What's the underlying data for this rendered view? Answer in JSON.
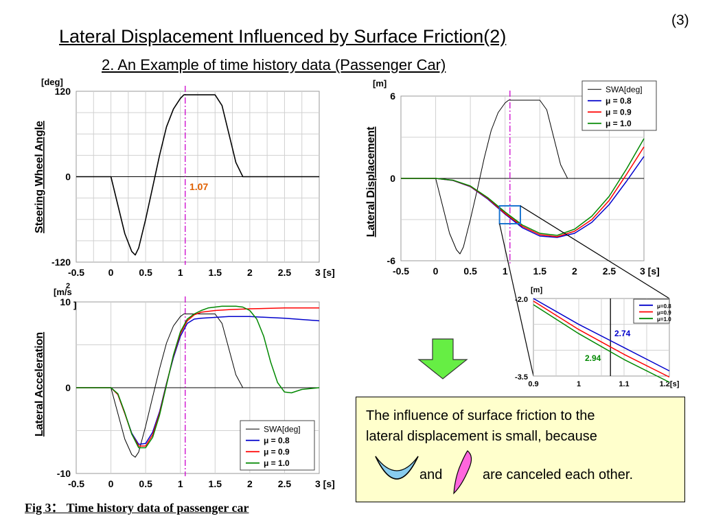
{
  "page_number": "(3)",
  "title": "Lateral Displacement Influenced by Surface Friction(2) ",
  "subtitle": "2. An Example of time history data (Passenger Car)",
  "caption": "Fig 3： Time history data of passenger car ",
  "note": {
    "line1": "The influence of surface friction to the",
    "line2": "lateral displacement is small, because",
    "and_label": "and",
    "tail": "are canceled each other."
  },
  "colors": {
    "swa": "#000000",
    "mu08": "#0000cc",
    "mu09": "#ff0000",
    "mu10": "#008800",
    "marker": "#cc00cc",
    "annotation_orange": "#e06000",
    "arrow": "#66ee44",
    "note_bg": "#ffffcc",
    "zoom_box": "#1a75d1"
  },
  "chart_data": [
    {
      "id": "steering",
      "type": "line",
      "unit_label": "[deg]",
      "ylabel": "Steering Wheel Angle",
      "xlim": [
        -0.5,
        3
      ],
      "ylim": [
        -120,
        120
      ],
      "yticks": [
        "120",
        "0",
        "-120"
      ],
      "xticks": [
        "-0.5",
        "0",
        "0.5",
        "1",
        "1.5",
        "2",
        "2.5",
        "3 [s]"
      ],
      "annotation": "1.07",
      "marker_x": 1.07,
      "series": [
        {
          "x": [
            -0.5,
            0,
            0.1,
            0.2,
            0.3,
            0.35,
            0.4,
            0.5,
            0.6,
            0.7,
            0.8,
            0.9,
            1.0,
            1.05,
            1.1,
            1.5,
            1.6,
            1.7,
            1.8,
            1.9,
            3.0
          ],
          "y": [
            0,
            0,
            -40,
            -80,
            -105,
            -110,
            -100,
            -60,
            -15,
            30,
            70,
            95,
            110,
            115,
            115,
            115,
            100,
            60,
            20,
            0,
            0
          ]
        }
      ]
    },
    {
      "id": "lateral_displacement",
      "type": "line",
      "unit_label": "[m]",
      "ylabel": "Lateral  Displacement",
      "xlim": [
        -0.5,
        3
      ],
      "ylim": [
        -6,
        6
      ],
      "yticks": [
        "6",
        "0",
        "-6"
      ],
      "xticks": [
        "-0.5",
        "0",
        "0.5",
        "1",
        "1.5",
        "2",
        "2.5",
        "3 [s]"
      ],
      "marker_x": 1.07,
      "legend": [
        "SWA[deg]",
        "μ  =  0.8",
        "μ  =  0.9",
        "μ  =  1.0"
      ],
      "swa": {
        "x": [
          -0.5,
          0,
          0.1,
          0.2,
          0.3,
          0.35,
          0.4,
          0.5,
          0.6,
          0.7,
          0.8,
          0.9,
          1.0,
          1.05,
          1.1,
          1.5,
          1.6,
          1.7,
          1.8,
          1.9,
          3.0
        ],
        "y": [
          0,
          0,
          -2.0,
          -4.0,
          -5.2,
          -5.5,
          -5.0,
          -3.0,
          -0.8,
          1.5,
          3.5,
          4.8,
          5.5,
          5.7,
          5.7,
          5.7,
          5.0,
          3.0,
          1.0,
          0,
          0
        ]
      },
      "series": [
        {
          "name": "μ  =  0.8",
          "x": [
            -0.5,
            0,
            0.25,
            0.5,
            0.75,
            1.0,
            1.25,
            1.5,
            1.75,
            2.0,
            2.25,
            2.5,
            2.75,
            3.0
          ],
          "y": [
            0,
            0,
            -0.15,
            -0.6,
            -1.5,
            -2.6,
            -3.6,
            -4.2,
            -4.3,
            -4.0,
            -3.2,
            -1.9,
            -0.2,
            1.6
          ]
        },
        {
          "name": "μ  =  0.9",
          "x": [
            -0.5,
            0,
            0.25,
            0.5,
            0.75,
            1.0,
            1.25,
            1.5,
            1.75,
            2.0,
            2.25,
            2.5,
            2.75,
            3.0
          ],
          "y": [
            0,
            0,
            -0.14,
            -0.58,
            -1.45,
            -2.55,
            -3.5,
            -4.1,
            -4.25,
            -3.85,
            -3.0,
            -1.6,
            0.3,
            2.3
          ]
        },
        {
          "name": "μ  =  1.0",
          "x": [
            -0.5,
            0,
            0.25,
            0.5,
            0.75,
            1.0,
            1.25,
            1.5,
            1.75,
            2.0,
            2.25,
            2.5,
            2.75,
            3.0
          ],
          "y": [
            0,
            0,
            -0.13,
            -0.55,
            -1.4,
            -2.45,
            -3.4,
            -4.0,
            -4.15,
            -3.7,
            -2.75,
            -1.3,
            0.7,
            2.9
          ]
        }
      ]
    },
    {
      "id": "lateral_acceleration",
      "type": "line",
      "unit_label": "[m/s",
      "unit_sup": "2",
      "unit_close": "]",
      "ylabel": "Lateral  Acceleration",
      "xlim": [
        -0.5,
        3
      ],
      "ylim": [
        -10,
        10
      ],
      "yticks": [
        "10",
        "0",
        "-10"
      ],
      "xticks": [
        "-0.5",
        "0",
        "0.5",
        "1",
        "1.5",
        "2",
        "2.5",
        "3 [s]"
      ],
      "marker_x": 1.07,
      "legend": [
        "SWA[deg]",
        "μ  =  0.8",
        "μ  =  0.9",
        "μ  =  1.0"
      ],
      "swa": {
        "x": [
          -0.5,
          0,
          0.1,
          0.2,
          0.3,
          0.35,
          0.4,
          0.5,
          0.6,
          0.7,
          0.8,
          0.9,
          1.0,
          1.05,
          1.1,
          1.5,
          1.6,
          1.7,
          1.8,
          1.9,
          3.0
        ],
        "y": [
          0,
          0,
          -3.0,
          -6.0,
          -7.8,
          -8.1,
          -7.5,
          -4.5,
          -1.1,
          2.2,
          5.2,
          7.2,
          8.3,
          8.6,
          8.6,
          8.6,
          7.5,
          4.5,
          1.5,
          0,
          0
        ]
      },
      "series": [
        {
          "name": "μ  =  0.8",
          "x": [
            -0.5,
            0,
            0.1,
            0.2,
            0.3,
            0.4,
            0.5,
            0.6,
            0.7,
            0.8,
            0.9,
            1.0,
            1.1,
            1.2,
            1.3,
            1.5,
            1.7,
            2.0,
            2.5,
            3.0
          ],
          "y": [
            0,
            0,
            -0.8,
            -3.0,
            -5.3,
            -6.6,
            -6.5,
            -5.2,
            -2.8,
            0.5,
            3.5,
            6.0,
            7.5,
            8.0,
            8.1,
            8.2,
            8.3,
            8.3,
            8.1,
            7.8
          ]
        },
        {
          "name": "μ  =  0.9",
          "x": [
            -0.5,
            0,
            0.1,
            0.2,
            0.3,
            0.4,
            0.5,
            0.6,
            0.7,
            0.8,
            0.9,
            1.0,
            1.1,
            1.2,
            1.3,
            1.5,
            1.7,
            2.0,
            2.5,
            3.0
          ],
          "y": [
            0,
            0,
            -0.8,
            -3.0,
            -5.4,
            -6.8,
            -6.8,
            -5.5,
            -3.0,
            0.4,
            3.7,
            6.3,
            7.8,
            8.5,
            8.8,
            9.0,
            9.1,
            9.2,
            9.3,
            9.3
          ]
        },
        {
          "name": "μ  =  1.0",
          "x": [
            -0.5,
            0,
            0.1,
            0.2,
            0.3,
            0.4,
            0.5,
            0.6,
            0.7,
            0.8,
            0.9,
            1.0,
            1.1,
            1.2,
            1.3,
            1.4,
            1.5,
            1.6,
            1.7,
            1.8,
            1.9,
            2.0,
            2.1,
            2.2,
            2.3,
            2.4,
            2.5,
            2.6,
            2.75,
            3.0
          ],
          "y": [
            0,
            0,
            -0.7,
            -2.9,
            -5.4,
            -7.0,
            -7.0,
            -5.8,
            -3.2,
            0.3,
            3.8,
            6.5,
            8.0,
            8.6,
            9.0,
            9.3,
            9.4,
            9.5,
            9.5,
            9.5,
            9.4,
            9.0,
            8.0,
            6.0,
            3.0,
            0.6,
            -0.5,
            -0.6,
            -0.2,
            0
          ]
        }
      ]
    },
    {
      "id": "zoom",
      "type": "line",
      "unit_label": "[m]",
      "xlim": [
        0.9,
        1.2
      ],
      "ylim": [
        -3.5,
        -2.0
      ],
      "yticks": [
        "-2.0",
        "-3.5"
      ],
      "xticks": [
        "0.9",
        "1",
        "1.1",
        "1.2[s]"
      ],
      "marker_x": 1.07,
      "legend": [
        "μ=0.8",
        "μ=0.9",
        "μ=1.0"
      ],
      "annotations": [
        {
          "text": "2.74",
          "series": "μ=0.8"
        },
        {
          "text": "2.94",
          "series": "μ=1.0"
        }
      ],
      "series": [
        {
          "name": "μ=0.8",
          "x": [
            0.9,
            1.0,
            1.1,
            1.2
          ],
          "y": [
            -2.0,
            -2.5,
            -2.95,
            -3.4
          ]
        },
        {
          "name": "μ=0.9",
          "x": [
            0.9,
            1.0,
            1.1,
            1.2
          ],
          "y": [
            -2.05,
            -2.6,
            -3.08,
            -3.52
          ]
        },
        {
          "name": "μ=1.0",
          "x": [
            0.9,
            1.0,
            1.1,
            1.2
          ],
          "y": [
            -2.12,
            -2.68,
            -3.18,
            -3.62
          ]
        }
      ]
    }
  ]
}
